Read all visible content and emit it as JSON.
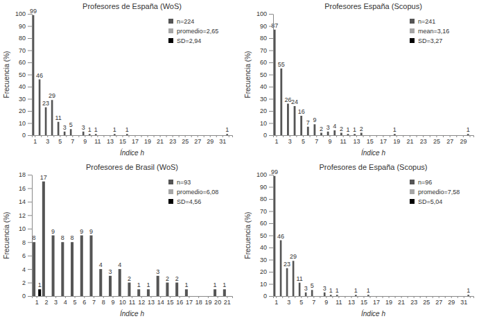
{
  "chart_data": [
    {
      "type": "bar",
      "title": "Profesores de España (WoS)",
      "x_label": "Índice h",
      "y_label": "Frecuencia (%)",
      "categories": [
        "1",
        null,
        "3",
        null,
        "5",
        null,
        "7",
        null,
        "9",
        null,
        "11",
        null,
        "13",
        null,
        "15",
        null,
        "17",
        null,
        "19",
        null,
        "21",
        null,
        "23",
        null,
        "25",
        null,
        "27",
        null,
        "29",
        null,
        "31",
        null
      ],
      "series": [
        {
          "name": "n=224",
          "color": "#555555",
          "values": [
            99,
            46,
            23,
            29,
            11,
            3,
            5,
            null,
            3,
            1,
            1,
            null,
            null,
            1,
            null,
            1,
            null,
            null,
            null,
            null,
            null,
            null,
            null,
            null,
            null,
            null,
            null,
            null,
            null,
            null,
            null,
            1
          ]
        },
        {
          "name": "promedio=2,65",
          "color": "#a6a6a6",
          "values": [
            null,
            null,
            null,
            null,
            null,
            null,
            null,
            null,
            null,
            null,
            null,
            null,
            null,
            null,
            null,
            null,
            null,
            null,
            null,
            null,
            null,
            null,
            null,
            null,
            null,
            null,
            null,
            null,
            null,
            null,
            null,
            null
          ]
        },
        {
          "name": "SD=2,94",
          "color": "#000000",
          "values": [
            null,
            null,
            null,
            null,
            null,
            null,
            null,
            null,
            null,
            null,
            null,
            null,
            null,
            null,
            null,
            null,
            null,
            null,
            null,
            null,
            null,
            null,
            null,
            null,
            null,
            null,
            null,
            null,
            null,
            null,
            null,
            null
          ]
        }
      ],
      "ylim": [
        0,
        100
      ],
      "yticks": [
        0,
        10,
        20,
        30,
        40,
        50,
        60,
        70,
        80,
        90,
        100
      ],
      "data_labels": true,
      "legend": "upper right",
      "grid": false
    },
    {
      "type": "bar",
      "title": "Profesores España (Scopus)",
      "x_label": "Índice h",
      "y_label": "Frecuencia (%)",
      "categories": [
        "1",
        null,
        "3",
        null,
        "5",
        null,
        "7",
        null,
        "9",
        null,
        "11",
        null,
        "13",
        null,
        "15",
        null,
        "17",
        null,
        "19",
        null,
        "21",
        null,
        "23",
        null,
        "25",
        null,
        "27",
        null,
        "29",
        null
      ],
      "series": [
        {
          "name": "n=241",
          "color": "#555555",
          "values": [
            87,
            55,
            26,
            24,
            16,
            7,
            9,
            2,
            3,
            4,
            2,
            1,
            1,
            2,
            null,
            null,
            null,
            null,
            1,
            null,
            null,
            null,
            null,
            null,
            null,
            null,
            null,
            null,
            null,
            1
          ]
        },
        {
          "name": "mean=3,16",
          "color": "#a6a6a6",
          "values": [
            null,
            null,
            null,
            null,
            null,
            null,
            null,
            null,
            null,
            null,
            null,
            null,
            null,
            null,
            null,
            null,
            null,
            null,
            null,
            null,
            null,
            null,
            null,
            null,
            null,
            null,
            null,
            null,
            null,
            null
          ]
        },
        {
          "name": "SD=3,27",
          "color": "#000000",
          "values": [
            null,
            null,
            null,
            null,
            null,
            null,
            null,
            null,
            null,
            null,
            null,
            null,
            null,
            null,
            null,
            null,
            null,
            null,
            null,
            null,
            null,
            null,
            null,
            null,
            null,
            null,
            null,
            null,
            null,
            null
          ]
        }
      ],
      "ylim": [
        0,
        100
      ],
      "yticks": [
        0,
        10,
        20,
        30,
        40,
        50,
        60,
        70,
        80,
        90,
        100
      ],
      "data_labels": true,
      "legend": "upper right",
      "grid": false
    },
    {
      "type": "bar",
      "title": "Profesores de Brasil (WoS)",
      "x_label": "Índice h",
      "y_label": "Frecuencia (%)",
      "categories": [
        "1",
        "2",
        "3",
        "4",
        "5",
        "6",
        "7",
        "8",
        "9",
        "10",
        "11",
        "12",
        "13",
        "14",
        "15",
        "16",
        "17",
        "18",
        "19",
        "20",
        "21"
      ],
      "series": [
        {
          "name": "n=93",
          "color": "#555555",
          "values": [
            8,
            17,
            9,
            8,
            8,
            9,
            9,
            4,
            3,
            4,
            2,
            1,
            1,
            3,
            2,
            2,
            1,
            null,
            null,
            1,
            1
          ]
        },
        {
          "name": "promedio=6,08",
          "color": "#a6a6a6",
          "values": [
            null,
            null,
            null,
            null,
            null,
            null,
            null,
            null,
            null,
            null,
            null,
            null,
            null,
            null,
            null,
            null,
            null,
            null,
            null,
            null,
            null
          ]
        },
        {
          "name": "SD=4,56",
          "color": "#000000",
          "values": [
            1,
            null,
            null,
            null,
            null,
            null,
            null,
            null,
            null,
            null,
            null,
            null,
            null,
            null,
            null,
            null,
            null,
            null,
            null,
            null,
            null
          ]
        }
      ],
      "ylim": [
        0,
        18
      ],
      "yticks": [
        0,
        2,
        4,
        6,
        8,
        10,
        12,
        14,
        16,
        18
      ],
      "data_labels": true,
      "legend": "upper right",
      "grid": false
    },
    {
      "type": "bar",
      "title": "Profesores de España (Scopus)",
      "x_label": "Índice h",
      "y_label": "Frecuencia (%)",
      "categories": [
        "1",
        null,
        "3",
        null,
        "5",
        null,
        "7",
        null,
        "9",
        null,
        "11",
        null,
        "13",
        null,
        "15",
        null,
        "17",
        null,
        "19",
        null,
        "21",
        null,
        "23",
        null,
        "25",
        null,
        "27",
        null,
        "29",
        null,
        "31",
        null
      ],
      "series": [
        {
          "name": "n=96",
          "color": "#555555",
          "values": [
            99,
            46,
            23,
            29,
            11,
            3,
            5,
            null,
            3,
            1,
            1,
            null,
            null,
            1,
            null,
            1,
            null,
            null,
            null,
            null,
            null,
            null,
            null,
            null,
            null,
            null,
            null,
            null,
            null,
            null,
            null,
            1
          ]
        },
        {
          "name": "promedio=7,58",
          "color": "#a6a6a6",
          "values": [
            null,
            null,
            null,
            null,
            null,
            null,
            null,
            null,
            null,
            null,
            null,
            null,
            null,
            null,
            null,
            null,
            null,
            null,
            null,
            null,
            null,
            null,
            null,
            null,
            null,
            null,
            null,
            null,
            null,
            null,
            null,
            null
          ]
        },
        {
          "name": "SD=5,04",
          "color": "#000000",
          "values": [
            null,
            null,
            null,
            null,
            null,
            null,
            null,
            null,
            null,
            null,
            null,
            null,
            null,
            null,
            null,
            null,
            null,
            null,
            null,
            null,
            null,
            null,
            null,
            null,
            null,
            null,
            null,
            null,
            null,
            null,
            null,
            null
          ]
        }
      ],
      "ylim": [
        0,
        100
      ],
      "yticks": [
        0,
        10,
        20,
        30,
        40,
        50,
        60,
        70,
        80,
        90,
        100
      ],
      "data_labels": true,
      "legend": "upper right",
      "grid": false
    }
  ]
}
